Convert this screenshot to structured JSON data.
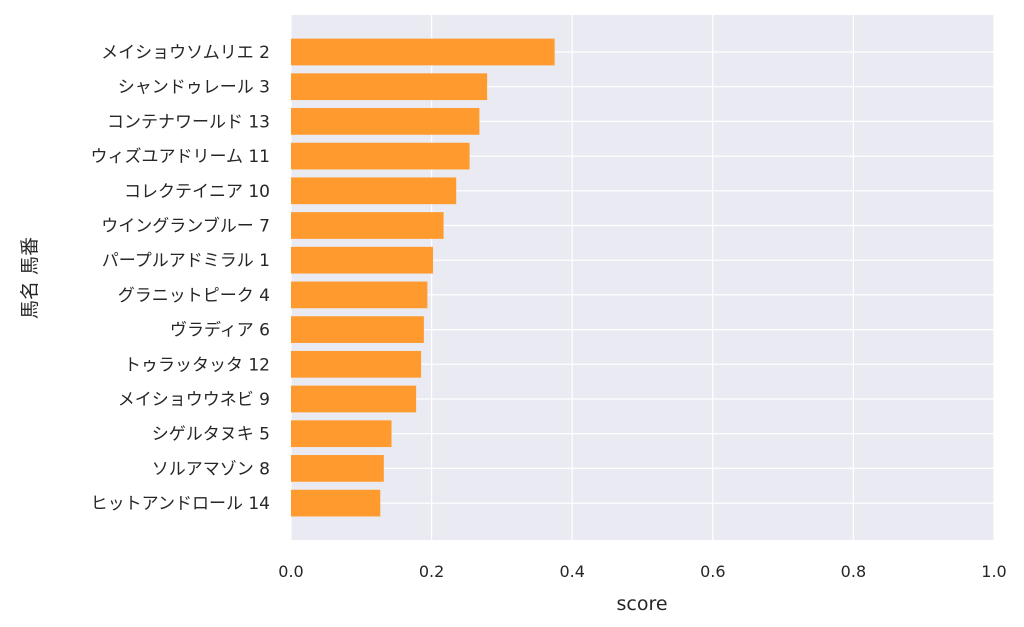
{
  "chart_data": {
    "type": "bar",
    "orientation": "horizontal",
    "title": "",
    "xlabel": "score",
    "ylabel": "馬名 馬番",
    "xlim": [
      0,
      1.0
    ],
    "xticks": [
      "0.0",
      "0.2",
      "0.4",
      "0.6",
      "0.8",
      "1.0"
    ],
    "grid": true,
    "categories": [
      "メイショウソムリエ 2",
      "シャンドゥレール 3",
      "コンテナワールド 13",
      "ウィズユアドリーム 11",
      "コレクテイニア 10",
      "ウイングランブルー 7",
      "パープルアドミラル 1",
      "グラニットピーク 4",
      "ヴラディア 6",
      "トゥラッタッタ 12",
      "メイショウウネビ 9",
      "シゲルタヌキ 5",
      "ソルアマゾン 8",
      "ヒットアンドロール 14"
    ],
    "values": [
      0.375,
      0.279,
      0.268,
      0.254,
      0.235,
      0.217,
      0.202,
      0.194,
      0.189,
      0.185,
      0.178,
      0.143,
      0.132,
      0.127
    ],
    "colors": {
      "bar": "#ff9a2e",
      "background": "#eaeaf2",
      "grid": "#ffffff",
      "text": "#262626"
    }
  }
}
